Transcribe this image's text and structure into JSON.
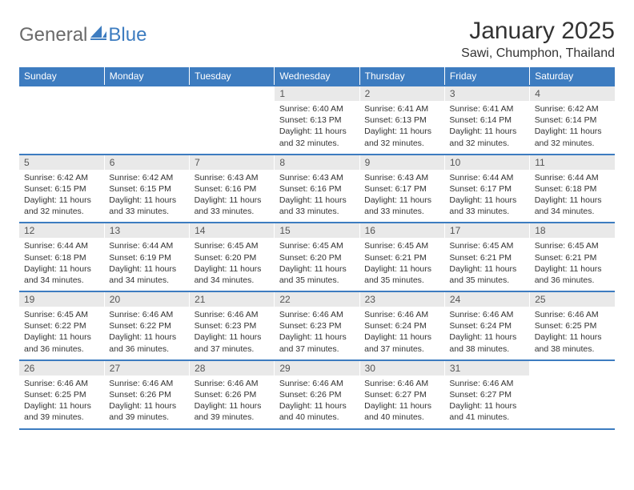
{
  "brand": {
    "general": "General",
    "blue": "Blue"
  },
  "title": "January 2025",
  "location": "Sawi, Chumphon, Thailand",
  "colors": {
    "accent": "#3d7cc0",
    "header_bg": "#3d7cc0",
    "header_text": "#ffffff",
    "daynum_bg": "#e9e9e9",
    "body_text": "#333333",
    "logo_gray": "#6a6a6a"
  },
  "weekdays": [
    "Sunday",
    "Monday",
    "Tuesday",
    "Wednesday",
    "Thursday",
    "Friday",
    "Saturday"
  ],
  "weeks": [
    [
      null,
      null,
      null,
      {
        "n": "1",
        "sunrise": "6:40 AM",
        "sunset": "6:13 PM",
        "daylight": "11 hours and 32 minutes."
      },
      {
        "n": "2",
        "sunrise": "6:41 AM",
        "sunset": "6:13 PM",
        "daylight": "11 hours and 32 minutes."
      },
      {
        "n": "3",
        "sunrise": "6:41 AM",
        "sunset": "6:14 PM",
        "daylight": "11 hours and 32 minutes."
      },
      {
        "n": "4",
        "sunrise": "6:42 AM",
        "sunset": "6:14 PM",
        "daylight": "11 hours and 32 minutes."
      }
    ],
    [
      {
        "n": "5",
        "sunrise": "6:42 AM",
        "sunset": "6:15 PM",
        "daylight": "11 hours and 32 minutes."
      },
      {
        "n": "6",
        "sunrise": "6:42 AM",
        "sunset": "6:15 PM",
        "daylight": "11 hours and 33 minutes."
      },
      {
        "n": "7",
        "sunrise": "6:43 AM",
        "sunset": "6:16 PM",
        "daylight": "11 hours and 33 minutes."
      },
      {
        "n": "8",
        "sunrise": "6:43 AM",
        "sunset": "6:16 PM",
        "daylight": "11 hours and 33 minutes."
      },
      {
        "n": "9",
        "sunrise": "6:43 AM",
        "sunset": "6:17 PM",
        "daylight": "11 hours and 33 minutes."
      },
      {
        "n": "10",
        "sunrise": "6:44 AM",
        "sunset": "6:17 PM",
        "daylight": "11 hours and 33 minutes."
      },
      {
        "n": "11",
        "sunrise": "6:44 AM",
        "sunset": "6:18 PM",
        "daylight": "11 hours and 34 minutes."
      }
    ],
    [
      {
        "n": "12",
        "sunrise": "6:44 AM",
        "sunset": "6:18 PM",
        "daylight": "11 hours and 34 minutes."
      },
      {
        "n": "13",
        "sunrise": "6:44 AM",
        "sunset": "6:19 PM",
        "daylight": "11 hours and 34 minutes."
      },
      {
        "n": "14",
        "sunrise": "6:45 AM",
        "sunset": "6:20 PM",
        "daylight": "11 hours and 34 minutes."
      },
      {
        "n": "15",
        "sunrise": "6:45 AM",
        "sunset": "6:20 PM",
        "daylight": "11 hours and 35 minutes."
      },
      {
        "n": "16",
        "sunrise": "6:45 AM",
        "sunset": "6:21 PM",
        "daylight": "11 hours and 35 minutes."
      },
      {
        "n": "17",
        "sunrise": "6:45 AM",
        "sunset": "6:21 PM",
        "daylight": "11 hours and 35 minutes."
      },
      {
        "n": "18",
        "sunrise": "6:45 AM",
        "sunset": "6:21 PM",
        "daylight": "11 hours and 36 minutes."
      }
    ],
    [
      {
        "n": "19",
        "sunrise": "6:45 AM",
        "sunset": "6:22 PM",
        "daylight": "11 hours and 36 minutes."
      },
      {
        "n": "20",
        "sunrise": "6:46 AM",
        "sunset": "6:22 PM",
        "daylight": "11 hours and 36 minutes."
      },
      {
        "n": "21",
        "sunrise": "6:46 AM",
        "sunset": "6:23 PM",
        "daylight": "11 hours and 37 minutes."
      },
      {
        "n": "22",
        "sunrise": "6:46 AM",
        "sunset": "6:23 PM",
        "daylight": "11 hours and 37 minutes."
      },
      {
        "n": "23",
        "sunrise": "6:46 AM",
        "sunset": "6:24 PM",
        "daylight": "11 hours and 37 minutes."
      },
      {
        "n": "24",
        "sunrise": "6:46 AM",
        "sunset": "6:24 PM",
        "daylight": "11 hours and 38 minutes."
      },
      {
        "n": "25",
        "sunrise": "6:46 AM",
        "sunset": "6:25 PM",
        "daylight": "11 hours and 38 minutes."
      }
    ],
    [
      {
        "n": "26",
        "sunrise": "6:46 AM",
        "sunset": "6:25 PM",
        "daylight": "11 hours and 39 minutes."
      },
      {
        "n": "27",
        "sunrise": "6:46 AM",
        "sunset": "6:26 PM",
        "daylight": "11 hours and 39 minutes."
      },
      {
        "n": "28",
        "sunrise": "6:46 AM",
        "sunset": "6:26 PM",
        "daylight": "11 hours and 39 minutes."
      },
      {
        "n": "29",
        "sunrise": "6:46 AM",
        "sunset": "6:26 PM",
        "daylight": "11 hours and 40 minutes."
      },
      {
        "n": "30",
        "sunrise": "6:46 AM",
        "sunset": "6:27 PM",
        "daylight": "11 hours and 40 minutes."
      },
      {
        "n": "31",
        "sunrise": "6:46 AM",
        "sunset": "6:27 PM",
        "daylight": "11 hours and 41 minutes."
      },
      null
    ]
  ],
  "labels": {
    "sunrise": "Sunrise:",
    "sunset": "Sunset:",
    "daylight": "Daylight:"
  }
}
